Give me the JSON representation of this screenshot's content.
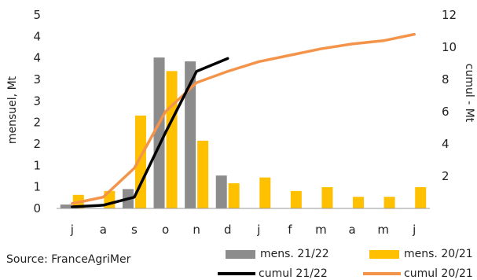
{
  "source": "Source: FranceAgriMer",
  "colors": {
    "bars_2122": "#8c8c8c",
    "bars_2021": "#ffc000",
    "line_2122": "#000000",
    "line_2021": "#f4944a"
  },
  "chart_data": {
    "type": "bar+line",
    "categories": [
      "j",
      "a",
      "s",
      "o",
      "n",
      "d",
      "j",
      "f",
      "m",
      "a",
      "m",
      "j"
    ],
    "ylabel": "mensuel, Mt",
    "y2label": "cumul - Mt",
    "ylim": [
      0,
      5
    ],
    "y2lim": [
      0,
      12
    ],
    "yticks": [
      "0",
      "1",
      "1",
      "2",
      "2",
      "3",
      "3",
      "4",
      "4",
      "5"
    ],
    "y2ticks": [
      "2",
      "4",
      "6",
      "8",
      "10",
      "12"
    ],
    "series": [
      {
        "name": "mens. 21/22",
        "type": "bar",
        "axis": "left",
        "color": "#8c8c8c",
        "values": [
          0.1,
          null,
          0.5,
          3.9,
          3.8,
          0.85,
          null,
          null,
          null,
          null,
          null,
          null
        ]
      },
      {
        "name": "mens. 20/21",
        "type": "bar",
        "axis": "left",
        "color": "#ffc000",
        "values": [
          0.35,
          0.45,
          2.4,
          3.55,
          1.75,
          0.65,
          0.8,
          0.45,
          0.55,
          0.3,
          0.3,
          0.55
        ]
      },
      {
        "name": "cumul 21/22",
        "type": "line",
        "axis": "right",
        "color": "#000000",
        "values": [
          0.1,
          0.2,
          0.7,
          4.7,
          8.5,
          9.3,
          null,
          null,
          null,
          null,
          null,
          null
        ]
      },
      {
        "name": "cumul 20/21",
        "type": "line",
        "axis": "right",
        "color": "#f4944a",
        "values": [
          0.3,
          0.7,
          2.5,
          6.0,
          7.8,
          8.5,
          9.1,
          9.5,
          9.9,
          10.2,
          10.4,
          10.8
        ]
      }
    ],
    "legend": [
      "mens. 21/22",
      "mens. 20/21",
      "cumul 21/22",
      "cumul 20/21"
    ]
  }
}
